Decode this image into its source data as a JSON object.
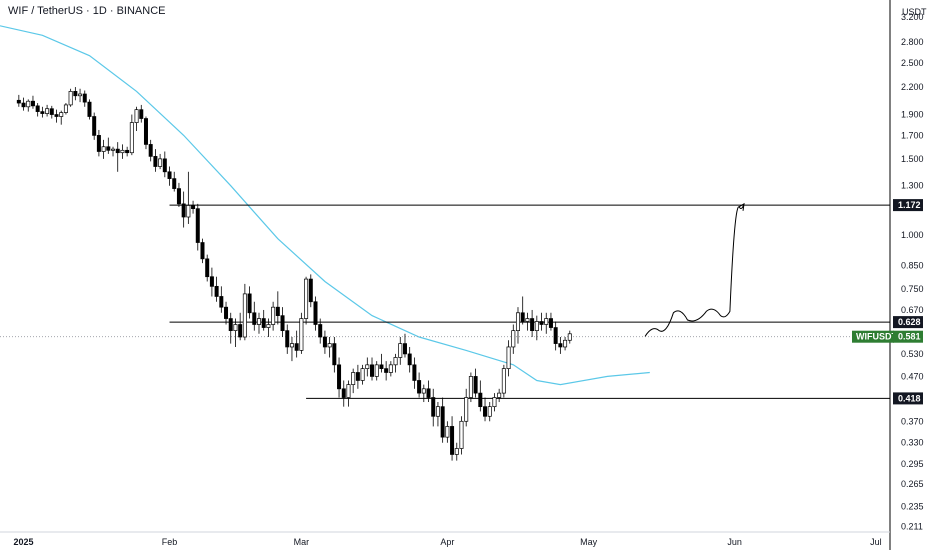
{
  "header": {
    "title": "WIF / TetherUS · 1D · BINANCE"
  },
  "price_axis": {
    "currency": "USDT",
    "ticks": [
      "3.200",
      "2.800",
      "2.500",
      "2.200",
      "1.900",
      "1.700",
      "1.500",
      "1.300",
      "1.000",
      "0.850",
      "0.750",
      "0.670",
      "0.530",
      "0.470",
      "0.370",
      "0.330",
      "0.295",
      "0.265",
      "0.235",
      "0.211"
    ]
  },
  "time_axis": {
    "labels": [
      "2025",
      "Feb",
      "Mar",
      "Apr",
      "May",
      "Jun",
      "Jul"
    ]
  },
  "levels": [
    {
      "value": 1.172,
      "label": "1.172"
    },
    {
      "value": 0.628,
      "label": "0.628"
    },
    {
      "value": 0.418,
      "label": "0.418"
    }
  ],
  "current_price": {
    "symbol": "WIFUSDT",
    "label": "0.581",
    "value": 0.581
  },
  "colors": {
    "ma": "#5bc8e8",
    "up": "#ffffff",
    "down": "#000000",
    "badge": "#131722",
    "current_badge": "#2e7d32",
    "grid_line": "#000000"
  },
  "chart_data": {
    "type": "candlestick",
    "title": "WIF / TetherUS · 1D · BINANCE",
    "y_scale": "log",
    "ylim": [
      0.205,
      3.5
    ],
    "x_range": [
      "2024-12-27",
      "2025-07-04"
    ],
    "candles_start": "2024-12-31",
    "candles": [
      [
        2.05,
        2.11,
        1.98,
        2.02
      ],
      [
        2.02,
        2.08,
        1.94,
        1.98
      ],
      [
        1.98,
        2.06,
        1.93,
        2.04
      ],
      [
        2.04,
        2.1,
        1.96,
        1.99
      ],
      [
        1.99,
        2.02,
        1.88,
        1.93
      ],
      [
        1.93,
        1.98,
        1.87,
        1.91
      ],
      [
        1.91,
        2.0,
        1.88,
        1.96
      ],
      [
        1.96,
        1.99,
        1.86,
        1.9
      ],
      [
        1.9,
        1.95,
        1.82,
        1.88
      ],
      [
        1.88,
        1.94,
        1.8,
        1.92
      ],
      [
        1.92,
        2.02,
        1.9,
        2.0
      ],
      [
        2.0,
        2.18,
        1.98,
        2.15
      ],
      [
        2.15,
        2.2,
        2.05,
        2.1
      ],
      [
        2.1,
        2.18,
        2.03,
        2.12
      ],
      [
        2.12,
        2.16,
        1.98,
        2.03
      ],
      [
        2.03,
        2.06,
        1.85,
        1.88
      ],
      [
        1.88,
        1.92,
        1.66,
        1.7
      ],
      [
        1.7,
        1.75,
        1.52,
        1.56
      ],
      [
        1.56,
        1.66,
        1.5,
        1.6
      ],
      [
        1.6,
        1.68,
        1.54,
        1.57
      ],
      [
        1.57,
        1.6,
        1.52,
        1.58
      ],
      [
        1.58,
        1.64,
        1.4,
        1.55
      ],
      [
        1.55,
        1.62,
        1.5,
        1.57
      ],
      [
        1.57,
        1.6,
        1.52,
        1.55
      ],
      [
        1.55,
        1.9,
        1.53,
        1.82
      ],
      [
        1.82,
        1.98,
        1.74,
        1.95
      ],
      [
        1.95,
        2.0,
        1.82,
        1.86
      ],
      [
        1.86,
        1.88,
        1.58,
        1.62
      ],
      [
        1.62,
        1.66,
        1.48,
        1.52
      ],
      [
        1.52,
        1.58,
        1.4,
        1.44
      ],
      [
        1.44,
        1.54,
        1.42,
        1.5
      ],
      [
        1.5,
        1.56,
        1.36,
        1.4
      ],
      [
        1.4,
        1.44,
        1.3,
        1.35
      ],
      [
        1.35,
        1.4,
        1.26,
        1.28
      ],
      [
        1.28,
        1.32,
        1.16,
        1.18
      ],
      [
        1.18,
        1.26,
        1.04,
        1.1
      ],
      [
        1.1,
        1.4,
        1.06,
        1.17
      ],
      [
        1.17,
        1.2,
        1.12,
        1.15
      ],
      [
        1.15,
        1.18,
        0.92,
        0.96
      ],
      [
        0.96,
        0.98,
        0.86,
        0.88
      ],
      [
        0.88,
        0.9,
        0.78,
        0.8
      ],
      [
        0.8,
        0.84,
        0.72,
        0.76
      ],
      [
        0.76,
        0.8,
        0.7,
        0.72
      ],
      [
        0.72,
        0.76,
        0.66,
        0.68
      ],
      [
        0.68,
        0.7,
        0.62,
        0.64
      ],
      [
        0.64,
        0.66,
        0.56,
        0.6
      ],
      [
        0.6,
        0.64,
        0.55,
        0.62
      ],
      [
        0.62,
        0.66,
        0.57,
        0.58
      ],
      [
        0.58,
        0.77,
        0.57,
        0.73
      ],
      [
        0.73,
        0.76,
        0.64,
        0.66
      ],
      [
        0.66,
        0.7,
        0.6,
        0.62
      ],
      [
        0.62,
        0.66,
        0.59,
        0.64
      ],
      [
        0.64,
        0.67,
        0.6,
        0.61
      ],
      [
        0.61,
        0.64,
        0.58,
        0.62
      ],
      [
        0.62,
        0.7,
        0.6,
        0.68
      ],
      [
        0.68,
        0.74,
        0.62,
        0.65
      ],
      [
        0.65,
        0.68,
        0.58,
        0.6
      ],
      [
        0.6,
        0.62,
        0.53,
        0.55
      ],
      [
        0.55,
        0.58,
        0.51,
        0.56
      ],
      [
        0.56,
        0.6,
        0.52,
        0.54
      ],
      [
        0.54,
        0.66,
        0.53,
        0.64
      ],
      [
        0.64,
        0.8,
        0.62,
        0.79
      ],
      [
        0.79,
        0.81,
        0.68,
        0.7
      ],
      [
        0.7,
        0.72,
        0.6,
        0.62
      ],
      [
        0.62,
        0.64,
        0.56,
        0.58
      ],
      [
        0.58,
        0.6,
        0.53,
        0.55
      ],
      [
        0.55,
        0.58,
        0.52,
        0.56
      ],
      [
        0.56,
        0.58,
        0.48,
        0.5
      ],
      [
        0.5,
        0.52,
        0.42,
        0.44
      ],
      [
        0.44,
        0.46,
        0.4,
        0.42
      ],
      [
        0.42,
        0.46,
        0.4,
        0.45
      ],
      [
        0.45,
        0.49,
        0.43,
        0.48
      ],
      [
        0.48,
        0.5,
        0.44,
        0.46
      ],
      [
        0.46,
        0.5,
        0.45,
        0.49
      ],
      [
        0.49,
        0.52,
        0.47,
        0.5
      ],
      [
        0.5,
        0.52,
        0.46,
        0.47
      ],
      [
        0.47,
        0.51,
        0.46,
        0.5
      ],
      [
        0.5,
        0.53,
        0.48,
        0.49
      ],
      [
        0.49,
        0.51,
        0.46,
        0.48
      ],
      [
        0.48,
        0.51,
        0.47,
        0.5
      ],
      [
        0.5,
        0.53,
        0.48,
        0.52
      ],
      [
        0.52,
        0.58,
        0.5,
        0.56
      ],
      [
        0.56,
        0.59,
        0.52,
        0.53
      ],
      [
        0.53,
        0.55,
        0.48,
        0.5
      ],
      [
        0.5,
        0.52,
        0.44,
        0.46
      ],
      [
        0.46,
        0.48,
        0.42,
        0.43
      ],
      [
        0.43,
        0.45,
        0.41,
        0.44
      ],
      [
        0.44,
        0.46,
        0.41,
        0.42
      ],
      [
        0.42,
        0.44,
        0.36,
        0.38
      ],
      [
        0.38,
        0.41,
        0.36,
        0.4
      ],
      [
        0.4,
        0.42,
        0.33,
        0.34
      ],
      [
        0.34,
        0.37,
        0.33,
        0.36
      ],
      [
        0.36,
        0.38,
        0.3,
        0.31
      ],
      [
        0.31,
        0.33,
        0.3,
        0.32
      ],
      [
        0.32,
        0.38,
        0.31,
        0.37
      ],
      [
        0.37,
        0.44,
        0.36,
        0.42
      ],
      [
        0.42,
        0.48,
        0.41,
        0.47
      ],
      [
        0.47,
        0.49,
        0.42,
        0.43
      ],
      [
        0.43,
        0.46,
        0.39,
        0.4
      ],
      [
        0.4,
        0.42,
        0.37,
        0.38
      ],
      [
        0.38,
        0.41,
        0.37,
        0.4
      ],
      [
        0.4,
        0.43,
        0.39,
        0.42
      ],
      [
        0.42,
        0.44,
        0.41,
        0.43
      ],
      [
        0.43,
        0.5,
        0.42,
        0.49
      ],
      [
        0.49,
        0.57,
        0.47,
        0.55
      ],
      [
        0.55,
        0.62,
        0.53,
        0.6
      ],
      [
        0.6,
        0.68,
        0.56,
        0.66
      ],
      [
        0.66,
        0.72,
        0.62,
        0.63
      ],
      [
        0.63,
        0.66,
        0.6,
        0.64
      ],
      [
        0.64,
        0.67,
        0.58,
        0.6
      ],
      [
        0.6,
        0.65,
        0.57,
        0.63
      ],
      [
        0.63,
        0.66,
        0.6,
        0.62
      ],
      [
        0.62,
        0.66,
        0.59,
        0.64
      ],
      [
        0.64,
        0.66,
        0.6,
        0.61
      ],
      [
        0.61,
        0.63,
        0.54,
        0.56
      ],
      [
        0.56,
        0.58,
        0.53,
        0.55
      ],
      [
        0.55,
        0.58,
        0.54,
        0.57
      ],
      [
        0.57,
        0.6,
        0.56,
        0.59
      ]
    ],
    "moving_average": [
      [
        "2024-12-27",
        3.05
      ],
      [
        "2025-01-05",
        2.9
      ],
      [
        "2025-01-15",
        2.6
      ],
      [
        "2025-01-25",
        2.15
      ],
      [
        "2025-02-04",
        1.7
      ],
      [
        "2025-02-14",
        1.3
      ],
      [
        "2025-02-24",
        0.98
      ],
      [
        "2025-03-06",
        0.78
      ],
      [
        "2025-03-16",
        0.65
      ],
      [
        "2025-03-26",
        0.58
      ],
      [
        "2025-04-05",
        0.54
      ],
      [
        "2025-04-15",
        0.5
      ],
      [
        "2025-04-20",
        0.46
      ],
      [
        "2025-04-25",
        0.45
      ],
      [
        "2025-05-05",
        0.47
      ],
      [
        "2025-05-14",
        0.48
      ]
    ],
    "projection": [
      [
        "2025-05-13",
        0.582
      ],
      [
        "2025-05-16",
        0.6
      ],
      [
        "2025-05-19",
        0.66
      ],
      [
        "2025-05-22",
        0.635
      ],
      [
        "2025-05-26",
        0.665
      ],
      [
        "2025-05-29",
        0.65
      ],
      [
        "2025-05-31",
        0.665
      ],
      [
        "2025-06-02",
        1.16
      ],
      [
        "2025-06-03",
        1.18
      ]
    ],
    "level_starts": {
      "1.172": "2025-02-01",
      "0.628": "2025-02-01",
      "0.418": "2025-03-02"
    }
  }
}
